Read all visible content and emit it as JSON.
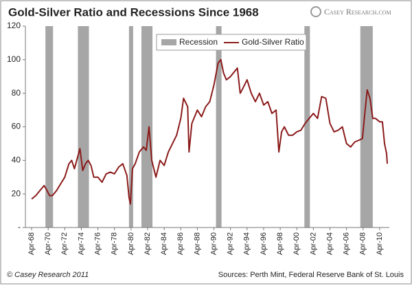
{
  "chart_data": {
    "type": "line",
    "title": "Gold-Silver Ratio and Recessions Since 1968",
    "brand": "Casey Research.com",
    "copyright": "© Casey Research 2011",
    "source": "Sources: Perth Mint, Federal Reserve Bank of St. Louis",
    "xlim": [
      "1967-07",
      "2011-06"
    ],
    "xticks": [
      {
        "value": "1968-04",
        "label": "Apr-68"
      },
      {
        "value": "1970-04",
        "label": "Apr-70"
      },
      {
        "value": "1972-04",
        "label": "Apr-72"
      },
      {
        "value": "1974-04",
        "label": "Apr-74"
      },
      {
        "value": "1976-04",
        "label": "Apr-76"
      },
      {
        "value": "1978-04",
        "label": "Apr-78"
      },
      {
        "value": "1980-04",
        "label": "Apr-80"
      },
      {
        "value": "1982-04",
        "label": "Apr-82"
      },
      {
        "value": "1984-04",
        "label": "Apr-84"
      },
      {
        "value": "1986-04",
        "label": "Apr-86"
      },
      {
        "value": "1988-04",
        "label": "Apr-88"
      },
      {
        "value": "1990-04",
        "label": "Apr-90"
      },
      {
        "value": "1992-04",
        "label": "Apr-92"
      },
      {
        "value": "1994-04",
        "label": "Apr-94"
      },
      {
        "value": "1996-04",
        "label": "Apr-96"
      },
      {
        "value": "1998-04",
        "label": "Apr-98"
      },
      {
        "value": "2000-04",
        "label": "Apr-00"
      },
      {
        "value": "2002-04",
        "label": "Apr-02"
      },
      {
        "value": "2004-04",
        "label": "Apr-04"
      },
      {
        "value": "2006-04",
        "label": "Apr-06"
      },
      {
        "value": "2008-04",
        "label": "Apr-08"
      },
      {
        "value": "2010-04",
        "label": "Apr-10"
      }
    ],
    "ylim": [
      0,
      120
    ],
    "yticks": [
      {
        "value": 0,
        "label": "-"
      },
      20,
      40,
      60,
      80,
      100,
      120
    ],
    "legend": "top",
    "recessions": {
      "name": "Recession",
      "color": "#a6a6a6",
      "start": [
        "1969-12",
        "1973-11",
        "1980-01",
        "1981-07",
        "1990-07",
        "2001-03",
        "2007-12"
      ],
      "end": [
        "1970-11",
        "1975-03",
        "1980-07",
        "1982-11",
        "1991-03",
        "2001-11",
        "2009-06"
      ]
    },
    "series": [
      {
        "name": "Gold-Silver Ratio",
        "color": "#8b1a1a",
        "x": [
          "1968-04",
          "1968-10",
          "1969-04",
          "1969-10",
          "1970-01",
          "1970-06",
          "1970-10",
          "1971-04",
          "1971-10",
          "1972-04",
          "1972-10",
          "1973-02",
          "1973-06",
          "1973-10",
          "1974-02",
          "1974-06",
          "1974-10",
          "1975-02",
          "1975-06",
          "1975-10",
          "1976-04",
          "1976-10",
          "1977-04",
          "1977-10",
          "1978-04",
          "1978-10",
          "1979-04",
          "1979-10",
          "1980-01",
          "1980-03",
          "1980-06",
          "1980-10",
          "1981-04",
          "1981-10",
          "1982-02",
          "1982-06",
          "1982-10",
          "1983-04",
          "1983-10",
          "1984-04",
          "1984-10",
          "1985-04",
          "1985-10",
          "1986-04",
          "1986-08",
          "1987-02",
          "1987-04",
          "1987-08",
          "1988-04",
          "1988-10",
          "1989-04",
          "1989-10",
          "1990-04",
          "1990-10",
          "1991-02",
          "1991-06",
          "1991-10",
          "1992-04",
          "1992-10",
          "1993-02",
          "1993-06",
          "1993-10",
          "1994-04",
          "1994-10",
          "1995-04",
          "1995-10",
          "1996-04",
          "1996-10",
          "1997-04",
          "1997-10",
          "1998-02",
          "1998-06",
          "1998-10",
          "1999-04",
          "1999-10",
          "2000-04",
          "2000-10",
          "2001-04",
          "2001-10",
          "2002-04",
          "2002-10",
          "2003-04",
          "2003-10",
          "2004-04",
          "2004-10",
          "2005-04",
          "2005-10",
          "2006-04",
          "2006-10",
          "2007-04",
          "2007-10",
          "2008-03",
          "2008-06",
          "2008-10",
          "2009-02",
          "2009-06",
          "2009-10",
          "2010-04",
          "2010-08",
          "2010-11",
          "2011-02",
          "2011-03"
        ],
        "values": [
          17,
          19,
          22,
          25,
          23,
          19,
          19,
          22,
          26,
          30,
          38,
          40,
          35,
          41,
          47,
          34,
          38,
          40,
          37,
          30,
          30,
          27,
          32,
          33,
          32,
          36,
          38,
          31,
          18,
          14,
          35,
          38,
          45,
          48,
          46,
          60,
          40,
          30,
          40,
          37,
          45,
          50,
          55,
          65,
          77,
          72,
          45,
          62,
          70,
          66,
          72,
          75,
          85,
          98,
          100,
          92,
          88,
          90,
          93,
          95,
          80,
          83,
          88,
          80,
          75,
          80,
          73,
          75,
          68,
          70,
          45,
          57,
          60,
          55,
          55,
          57,
          58,
          62,
          65,
          68,
          65,
          78,
          77,
          62,
          57,
          58,
          60,
          50,
          48,
          51,
          52,
          53,
          66,
          82,
          77,
          65,
          65,
          63,
          63,
          50,
          44,
          38
        ]
      }
    ]
  }
}
